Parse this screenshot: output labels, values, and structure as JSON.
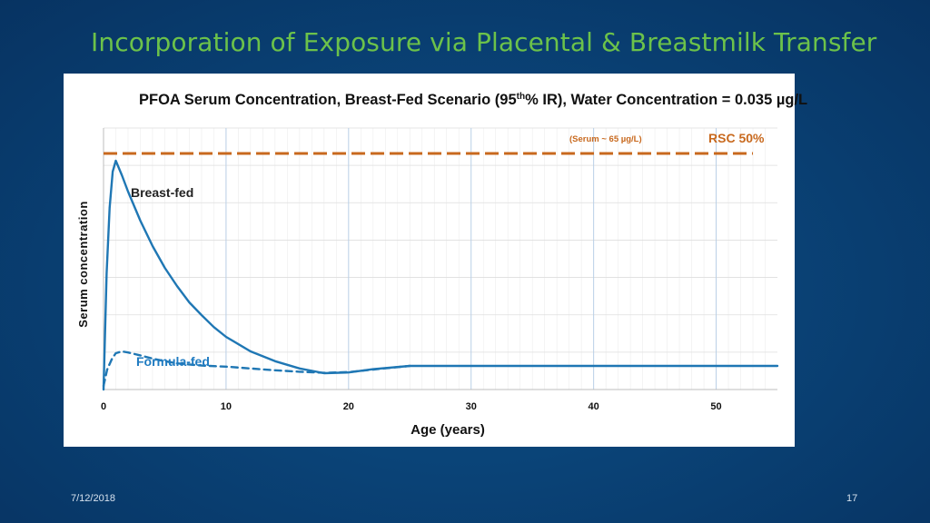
{
  "slide": {
    "title": "Incorporation of Exposure via Placental & Breastmilk Transfer",
    "date": "7/12/2018",
    "page_number": "17"
  },
  "chart_data": {
    "type": "line",
    "title_parts": {
      "before_sup": "PFOA Serum Concentration, Breast-Fed Scenario (95",
      "sup": "th",
      "after_sup": "% IR), Water Concentration = 0.035 µg/L"
    },
    "xlabel": "Age (years)",
    "ylabel": "Serum concentration",
    "xlim": [
      0,
      55
    ],
    "ylim": [
      0,
      72
    ],
    "x_ticks": [
      0,
      10,
      20,
      30,
      40,
      50
    ],
    "y_tick_labels_shown": false,
    "grid": true,
    "colors": {
      "breast_fed": "#1f77b4",
      "formula_fed": "#1f77b4",
      "rsc_line": "#c8691e"
    },
    "series": [
      {
        "name": "Breast-fed",
        "style": "solid",
        "x": [
          0,
          0.25,
          0.5,
          0.75,
          1,
          1.5,
          2,
          3,
          4,
          5,
          6,
          7,
          8,
          9,
          10,
          12,
          14,
          16,
          18,
          20,
          22,
          25,
          30,
          35,
          40,
          45,
          50,
          55
        ],
        "y": [
          0,
          32,
          50,
          60,
          63,
          59,
          54.5,
          46.5,
          39.5,
          33.5,
          28.5,
          24,
          20.5,
          17.2,
          14.5,
          10.5,
          7.8,
          5.8,
          4.5,
          4.7,
          5.6,
          6.5,
          6.5,
          6.5,
          6.5,
          6.5,
          6.5,
          6.5
        ]
      },
      {
        "name": "Formula-fed",
        "style": "dashed",
        "x": [
          0,
          0.3,
          0.7,
          1,
          1.5,
          2,
          3,
          4,
          5,
          6,
          8,
          10,
          12,
          14,
          16,
          18,
          20,
          22,
          25
        ],
        "y": [
          1,
          5.5,
          8.5,
          10,
          10.5,
          10.2,
          9.4,
          8.5,
          7.8,
          7.2,
          6.6,
          6.3,
          5.8,
          5.3,
          4.9,
          4.6,
          4.8,
          5.5,
          6.5
        ]
      }
    ],
    "reference_line": {
      "name": "RSC 50%",
      "y": 65,
      "style": "dashed",
      "annotation": "(Serum ~ 65 µg/L)"
    }
  }
}
